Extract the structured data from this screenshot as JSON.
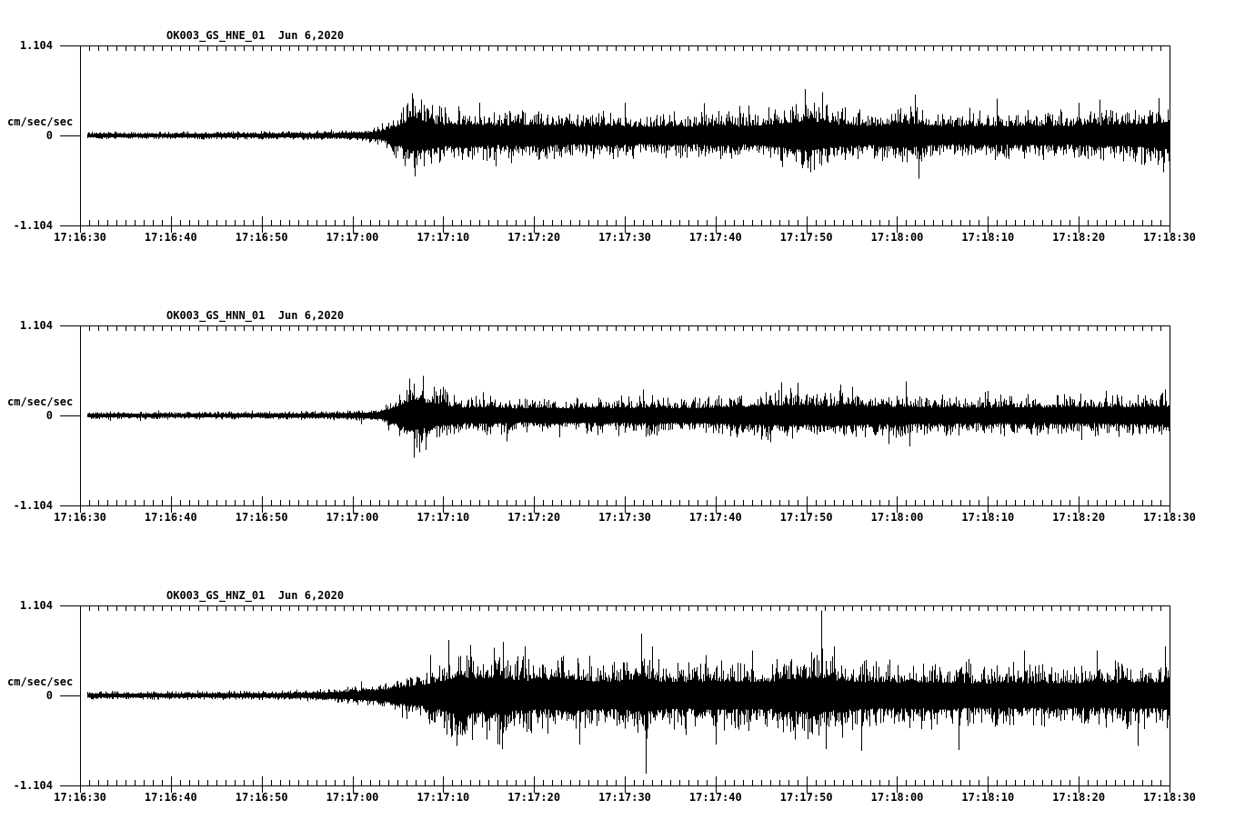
{
  "figure": {
    "background": "#ffffff",
    "trace_color": "#000000",
    "axis_color": "#000000"
  },
  "chart_data": [
    {
      "type": "line",
      "variant": "seismogram",
      "title": "OK003_GS_HNE_01  Jun 6,2020",
      "station_channel": "OK003_GS_HNE_01",
      "date": "Jun 6,2020",
      "ylabel": "cm/sec/sec",
      "ylim": [
        -1.104,
        1.104
      ],
      "ytick_labels": {
        "top": "1.104",
        "mid": "0",
        "bottom": "-1.104"
      },
      "x_range": [
        "17:16:30",
        "17:18:30"
      ],
      "x_duration_s": 120,
      "x_major_tick_s": 10,
      "x_minor_tick_s": 1,
      "grid": false,
      "xtick_labels": [
        "17:16:30",
        "17:16:40",
        "17:16:50",
        "17:17:00",
        "17:17:10",
        "17:17:20",
        "17:17:30",
        "17:17:40",
        "17:17:50",
        "17:18:00",
        "17:18:10",
        "17:18:20",
        "17:18:30"
      ],
      "envelope_cm_s2": [
        [
          0,
          0.05
        ],
        [
          10,
          0.05
        ],
        [
          20,
          0.055
        ],
        [
          28,
          0.06
        ],
        [
          31,
          0.08
        ],
        [
          33,
          0.12
        ],
        [
          35,
          0.3
        ],
        [
          36.5,
          0.5
        ],
        [
          38,
          0.42
        ],
        [
          40,
          0.33
        ],
        [
          43,
          0.36
        ],
        [
          46,
          0.3
        ],
        [
          49,
          0.34
        ],
        [
          52,
          0.3
        ],
        [
          55,
          0.28
        ],
        [
          58,
          0.31
        ],
        [
          61,
          0.27
        ],
        [
          64,
          0.29
        ],
        [
          67,
          0.27
        ],
        [
          70,
          0.31
        ],
        [
          73,
          0.28
        ],
        [
          76,
          0.34
        ],
        [
          78,
          0.4
        ],
        [
          80,
          0.47
        ],
        [
          82,
          0.4
        ],
        [
          84,
          0.33
        ],
        [
          87,
          0.3
        ],
        [
          89,
          0.34
        ],
        [
          91,
          0.38
        ],
        [
          93,
          0.32
        ],
        [
          96,
          0.28
        ],
        [
          99,
          0.3
        ],
        [
          102,
          0.29
        ],
        [
          105,
          0.31
        ],
        [
          108,
          0.29
        ],
        [
          111,
          0.31
        ],
        [
          114,
          0.33
        ],
        [
          117,
          0.36
        ],
        [
          120,
          0.4
        ]
      ],
      "spikes_cm_s2": [
        [
          36.6,
          0.52
        ],
        [
          36.9,
          -0.5
        ],
        [
          44,
          0.4
        ],
        [
          60,
          0.4
        ],
        [
          79.8,
          0.57
        ],
        [
          80.4,
          -0.45
        ],
        [
          92,
          0.5
        ],
        [
          92.4,
          -0.53
        ],
        [
          101,
          0.45
        ],
        [
          110,
          0.4
        ],
        [
          118.8,
          0.46
        ],
        [
          119.3,
          -0.45
        ]
      ],
      "noise_seed": 101
    },
    {
      "type": "line",
      "variant": "seismogram",
      "title": "OK003_GS_HNN_01  Jun 6,2020",
      "station_channel": "OK003_GS_HNN_01",
      "date": "Jun 6,2020",
      "ylabel": "cm/sec/sec",
      "ylim": [
        -1.104,
        1.104
      ],
      "ytick_labels": {
        "top": "1.104",
        "mid": "0",
        "bottom": "-1.104"
      },
      "x_range": [
        "17:16:30",
        "17:18:30"
      ],
      "x_duration_s": 120,
      "x_major_tick_s": 10,
      "x_minor_tick_s": 1,
      "grid": false,
      "xtick_labels": [
        "17:16:30",
        "17:16:40",
        "17:16:50",
        "17:17:00",
        "17:17:10",
        "17:17:20",
        "17:17:30",
        "17:17:40",
        "17:17:50",
        "17:18:00",
        "17:18:10",
        "17:18:20",
        "17:18:30"
      ],
      "envelope_cm_s2": [
        [
          0,
          0.05
        ],
        [
          15,
          0.05
        ],
        [
          25,
          0.055
        ],
        [
          30,
          0.07
        ],
        [
          33,
          0.1
        ],
        [
          35,
          0.28
        ],
        [
          36.5,
          0.48
        ],
        [
          38,
          0.4
        ],
        [
          40,
          0.3
        ],
        [
          42,
          0.24
        ],
        [
          45,
          0.27
        ],
        [
          48,
          0.22
        ],
        [
          51,
          0.24
        ],
        [
          54,
          0.22
        ],
        [
          57,
          0.24
        ],
        [
          60,
          0.23
        ],
        [
          63,
          0.25
        ],
        [
          66,
          0.22
        ],
        [
          69,
          0.24
        ],
        [
          72,
          0.27
        ],
        [
          75,
          0.29
        ],
        [
          78,
          0.31
        ],
        [
          81,
          0.29
        ],
        [
          84,
          0.31
        ],
        [
          87,
          0.29
        ],
        [
          90,
          0.27
        ],
        [
          93,
          0.25
        ],
        [
          96,
          0.26
        ],
        [
          99,
          0.24
        ],
        [
          102,
          0.26
        ],
        [
          105,
          0.25
        ],
        [
          108,
          0.26
        ],
        [
          111,
          0.25
        ],
        [
          114,
          0.26
        ],
        [
          117,
          0.27
        ],
        [
          120,
          0.28
        ]
      ],
      "spikes_cm_s2": [
        [
          36.3,
          0.45
        ],
        [
          36.8,
          -0.52
        ],
        [
          37.4,
          -0.45
        ],
        [
          40,
          0.35
        ],
        [
          47,
          -0.32
        ],
        [
          62,
          0.32
        ],
        [
          76,
          -0.33
        ],
        [
          79,
          0.4
        ],
        [
          85,
          0.35
        ],
        [
          89,
          -0.35
        ],
        [
          91,
          0.42
        ],
        [
          91.4,
          -0.38
        ],
        [
          100,
          0.3
        ],
        [
          113,
          0.3
        ],
        [
          119.5,
          0.32
        ]
      ],
      "noise_seed": 202
    },
    {
      "type": "line",
      "variant": "seismogram",
      "title": "OK003_GS_HNZ_01  Jun 6,2020",
      "station_channel": "OK003_GS_HNZ_01",
      "date": "Jun 6,2020",
      "ylabel": "cm/sec/sec",
      "ylim": [
        -1.104,
        1.104
      ],
      "ytick_labels": {
        "top": "1.104",
        "mid": "0",
        "bottom": "-1.104"
      },
      "x_range": [
        "17:16:30",
        "17:18:30"
      ],
      "x_duration_s": 120,
      "x_major_tick_s": 10,
      "x_minor_tick_s": 1,
      "grid": false,
      "xtick_labels": [
        "17:16:30",
        "17:16:40",
        "17:16:50",
        "17:17:00",
        "17:17:10",
        "17:17:20",
        "17:17:30",
        "17:17:40",
        "17:17:50",
        "17:18:00",
        "17:18:10",
        "17:18:20",
        "17:18:30"
      ],
      "envelope_cm_s2": [
        [
          0,
          0.05
        ],
        [
          15,
          0.055
        ],
        [
          22,
          0.06
        ],
        [
          26,
          0.08
        ],
        [
          29,
          0.11
        ],
        [
          32,
          0.15
        ],
        [
          34,
          0.2
        ],
        [
          36,
          0.28
        ],
        [
          38,
          0.34
        ],
        [
          40,
          0.48
        ],
        [
          42,
          0.58
        ],
        [
          44,
          0.52
        ],
        [
          46,
          0.58
        ],
        [
          48,
          0.48
        ],
        [
          51,
          0.44
        ],
        [
          54,
          0.5
        ],
        [
          57,
          0.42
        ],
        [
          60,
          0.46
        ],
        [
          62,
          0.52
        ],
        [
          64,
          0.44
        ],
        [
          67,
          0.42
        ],
        [
          70,
          0.46
        ],
        [
          73,
          0.42
        ],
        [
          76,
          0.44
        ],
        [
          79,
          0.5
        ],
        [
          81,
          0.58
        ],
        [
          83,
          0.48
        ],
        [
          85,
          0.44
        ],
        [
          88,
          0.42
        ],
        [
          91,
          0.4
        ],
        [
          94,
          0.42
        ],
        [
          97,
          0.4
        ],
        [
          100,
          0.38
        ],
        [
          103,
          0.41
        ],
        [
          106,
          0.38
        ],
        [
          109,
          0.4
        ],
        [
          112,
          0.38
        ],
        [
          115,
          0.42
        ],
        [
          118,
          0.4
        ],
        [
          120,
          0.44
        ]
      ],
      "spikes_cm_s2": [
        [
          40.6,
          0.68
        ],
        [
          41.5,
          -0.62
        ],
        [
          43,
          0.62
        ],
        [
          46.5,
          -0.66
        ],
        [
          49,
          0.6
        ],
        [
          55,
          -0.6
        ],
        [
          61.8,
          0.76
        ],
        [
          62.3,
          -0.96
        ],
        [
          63,
          0.6
        ],
        [
          70,
          -0.6
        ],
        [
          74,
          0.55
        ],
        [
          81.6,
          1.04
        ],
        [
          82.1,
          -0.66
        ],
        [
          83,
          0.6
        ],
        [
          86,
          -0.68
        ],
        [
          96.8,
          -0.67
        ],
        [
          104,
          0.55
        ],
        [
          112,
          0.55
        ],
        [
          116.5,
          -0.62
        ],
        [
          119.5,
          0.6
        ]
      ],
      "noise_seed": 303
    }
  ]
}
